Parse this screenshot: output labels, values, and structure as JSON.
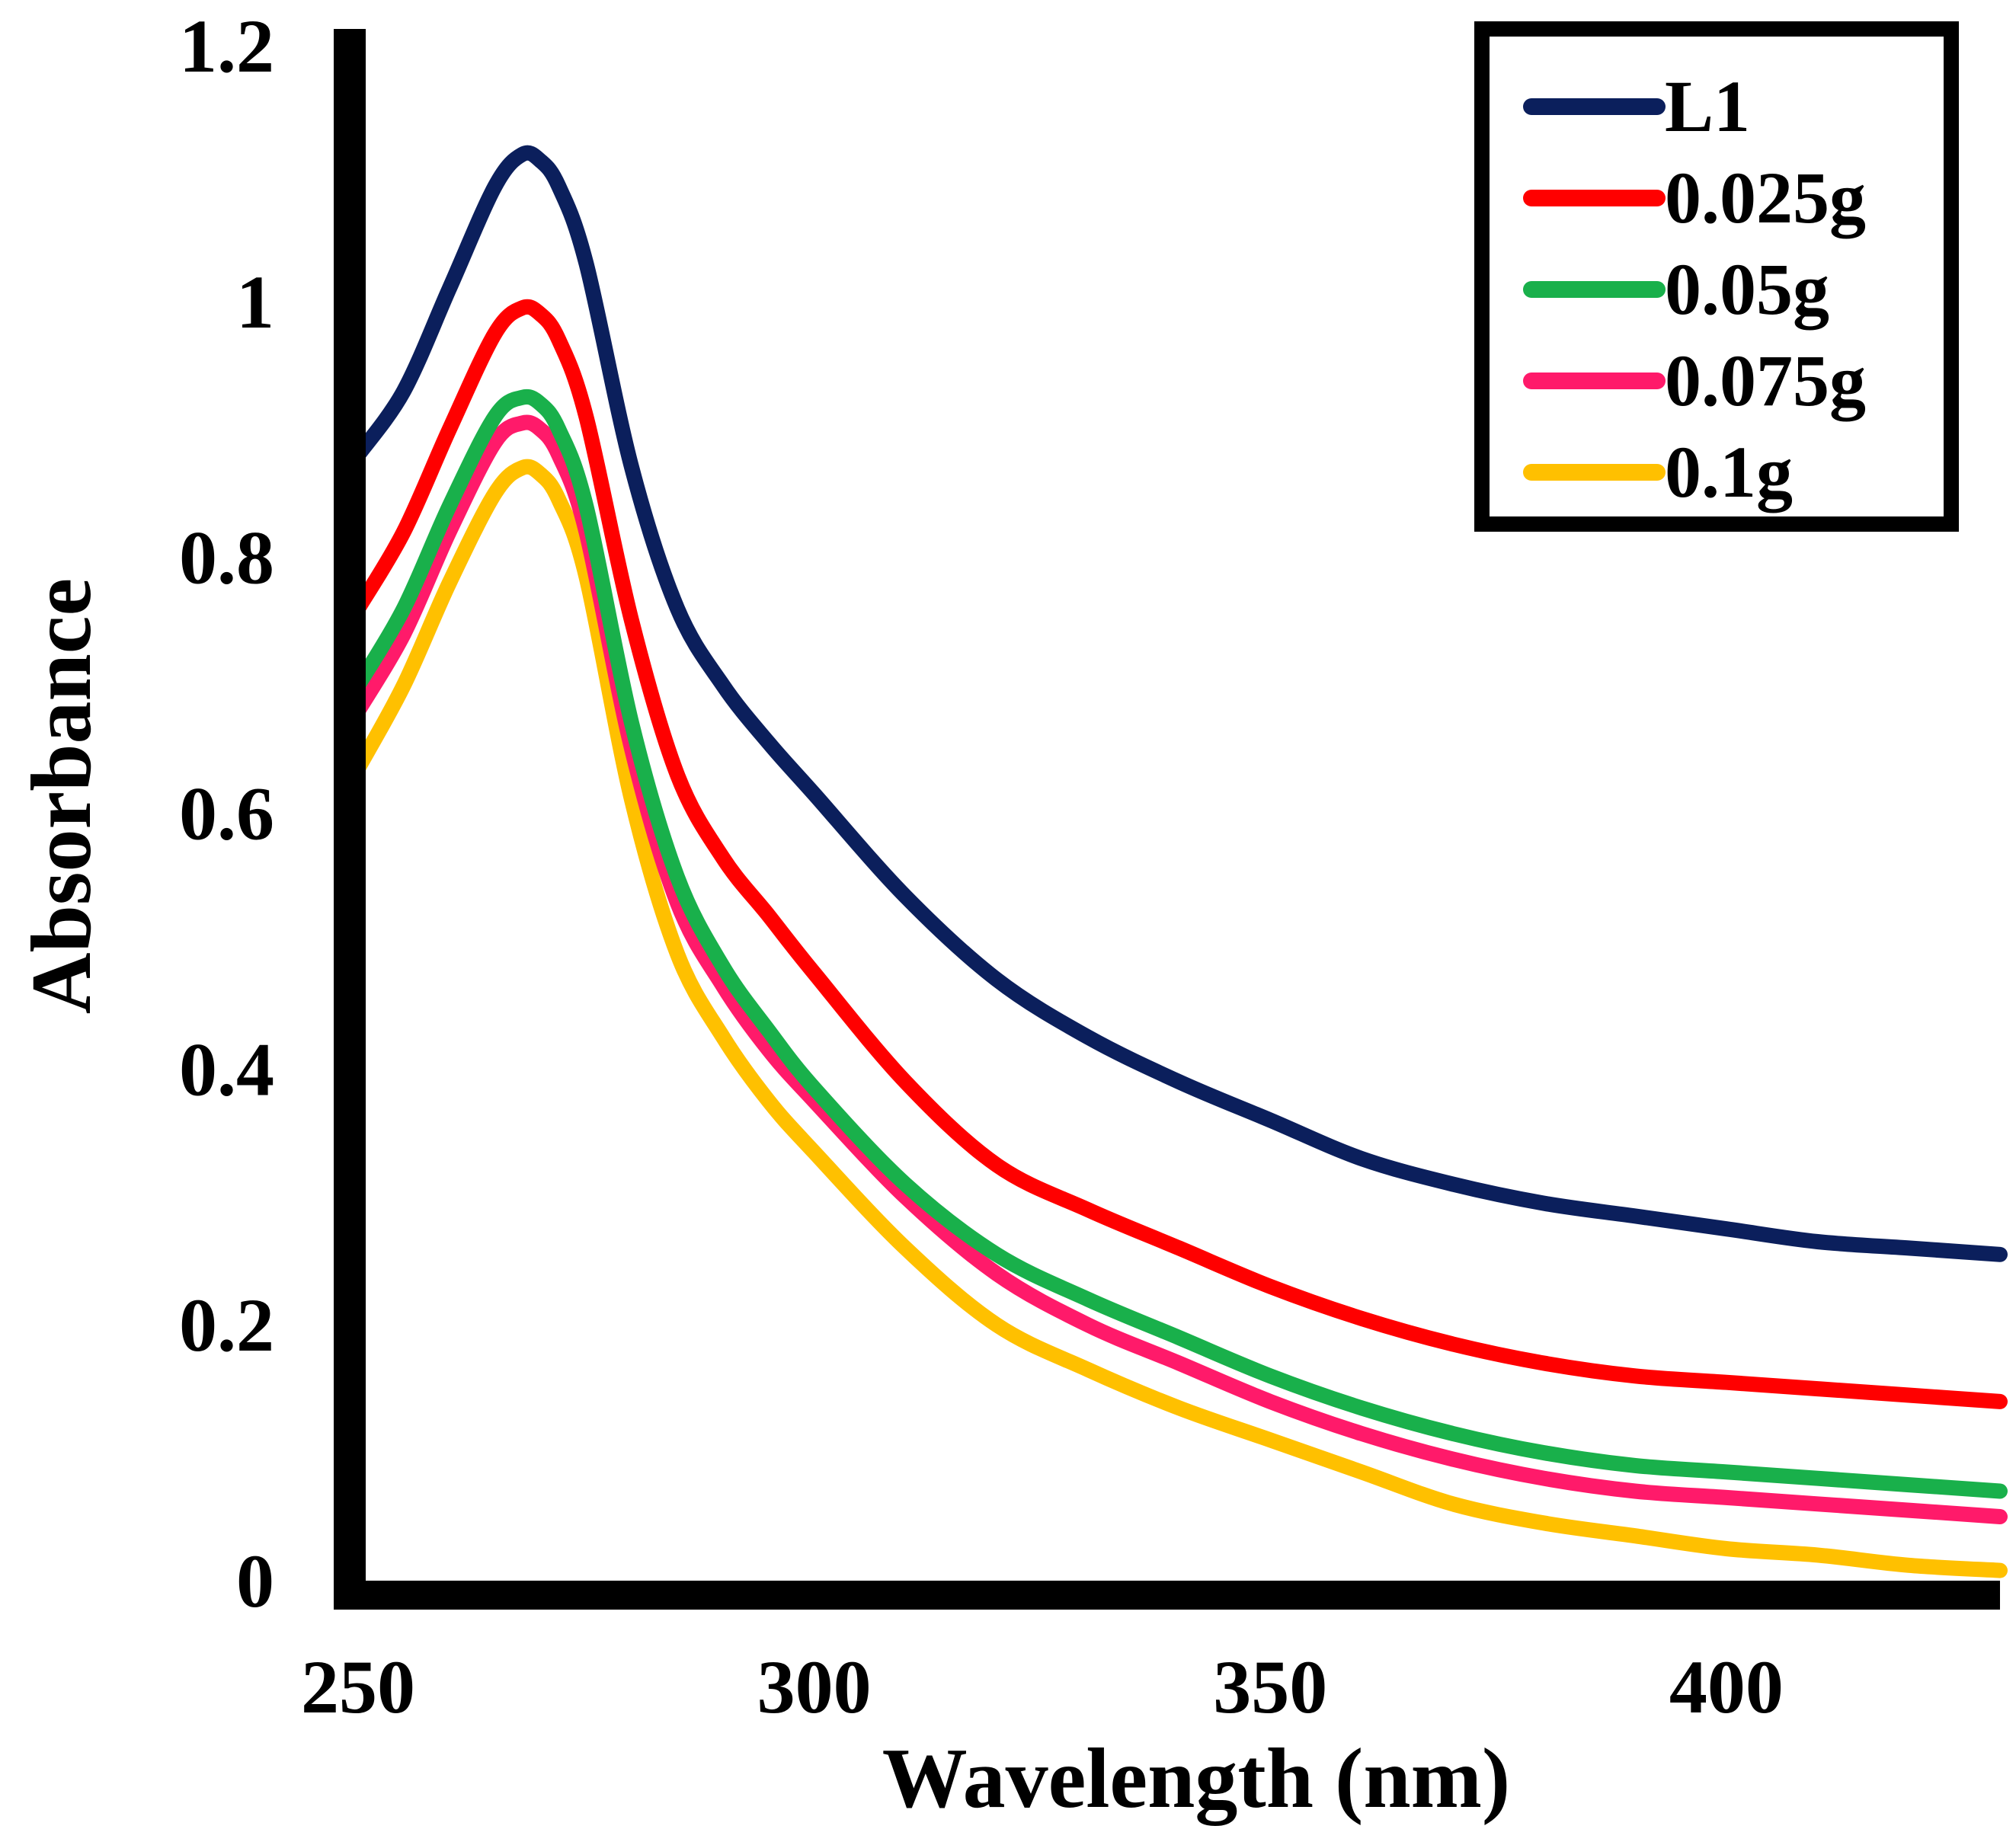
{
  "chart_data": {
    "type": "line",
    "title": "",
    "xlabel": "Wavelength (nm)",
    "ylabel": "Absorbance",
    "xlim": [
      250,
      430
    ],
    "ylim": [
      0,
      1.2
    ],
    "x_ticks": [
      250,
      300,
      350,
      400
    ],
    "x_tick_labels": [
      "250",
      "300",
      "350",
      "400"
    ],
    "y_ticks": [
      0,
      0.2,
      0.4,
      0.6,
      0.8,
      1,
      1.2
    ],
    "y_tick_labels": [
      "0",
      "0.2",
      "0.4",
      "0.6",
      "0.8",
      "1",
      "1.2"
    ],
    "grid": false,
    "legend_position": "top-right",
    "x": [
      250,
      255,
      260,
      265,
      268,
      270,
      272,
      275,
      280,
      285,
      290,
      295,
      300,
      310,
      320,
      330,
      340,
      350,
      360,
      370,
      380,
      390,
      400,
      410,
      420,
      430
    ],
    "series": [
      {
        "name": "L1",
        "color": "#0b1f5c",
        "values": [
          0.88,
          0.93,
          1.01,
          1.09,
          1.115,
          1.11,
          1.09,
          1.03,
          0.87,
          0.76,
          0.7,
          0.655,
          0.615,
          0.535,
          0.47,
          0.425,
          0.39,
          0.36,
          0.33,
          0.31,
          0.295,
          0.285,
          0.275,
          0.265,
          0.26,
          0.255
        ]
      },
      {
        "name": "0.025g",
        "color": "#ff0000",
        "values": [
          0.76,
          0.82,
          0.9,
          0.975,
          0.995,
          0.99,
          0.97,
          0.91,
          0.75,
          0.63,
          0.565,
          0.52,
          0.475,
          0.39,
          0.325,
          0.29,
          0.26,
          0.23,
          0.205,
          0.185,
          0.17,
          0.16,
          0.155,
          0.15,
          0.145,
          0.14
        ]
      },
      {
        "name": "0.05g",
        "color": "#19b04b",
        "values": [
          0.7,
          0.76,
          0.84,
          0.91,
          0.925,
          0.92,
          0.9,
          0.84,
          0.67,
          0.55,
          0.48,
          0.43,
          0.385,
          0.31,
          0.255,
          0.22,
          0.19,
          0.16,
          0.135,
          0.115,
          0.1,
          0.09,
          0.085,
          0.08,
          0.075,
          0.07
        ]
      },
      {
        "name": "0.075g",
        "color": "#ff1a6a",
        "values": [
          0.68,
          0.74,
          0.82,
          0.89,
          0.905,
          0.9,
          0.88,
          0.82,
          0.65,
          0.53,
          0.465,
          0.415,
          0.375,
          0.3,
          0.24,
          0.2,
          0.17,
          0.14,
          0.115,
          0.095,
          0.08,
          0.07,
          0.065,
          0.06,
          0.055,
          0.05
        ]
      },
      {
        "name": "0.1g",
        "color": "#ffc000",
        "values": [
          0.635,
          0.7,
          0.78,
          0.85,
          0.87,
          0.865,
          0.845,
          0.785,
          0.61,
          0.49,
          0.425,
          0.375,
          0.335,
          0.26,
          0.2,
          0.165,
          0.135,
          0.11,
          0.085,
          0.06,
          0.045,
          0.035,
          0.025,
          0.02,
          0.012,
          0.008
        ]
      }
    ]
  }
}
